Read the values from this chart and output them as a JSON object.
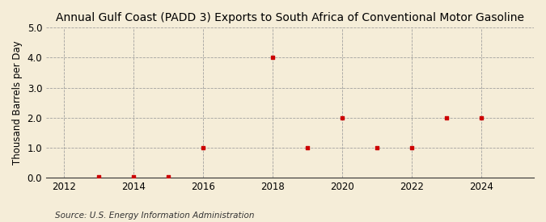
{
  "title": "Annual Gulf Coast (PADD 3) Exports to South Africa of Conventional Motor Gasoline",
  "ylabel": "Thousand Barrels per Day",
  "source": "Source: U.S. Energy Information Administration",
  "background_color": "#f5edd8",
  "years": [
    2013,
    2014,
    2015,
    2016,
    2018,
    2019,
    2020,
    2021,
    2022,
    2023,
    2024
  ],
  "values": [
    0.02,
    0.02,
    0.02,
    1.0,
    4.0,
    1.0,
    2.0,
    1.0,
    1.0,
    2.0,
    2.0
  ],
  "marker_color": "#cc0000",
  "marker": "s",
  "marker_size": 3.5,
  "xlim": [
    2011.5,
    2025.5
  ],
  "ylim": [
    0.0,
    5.0
  ],
  "yticks": [
    0.0,
    1.0,
    2.0,
    3.0,
    4.0,
    5.0
  ],
  "xticks": [
    2012,
    2014,
    2016,
    2018,
    2020,
    2022,
    2024
  ],
  "grid_color": "#999999",
  "title_fontsize": 10,
  "label_fontsize": 8.5,
  "tick_fontsize": 8.5,
  "source_fontsize": 7.5
}
